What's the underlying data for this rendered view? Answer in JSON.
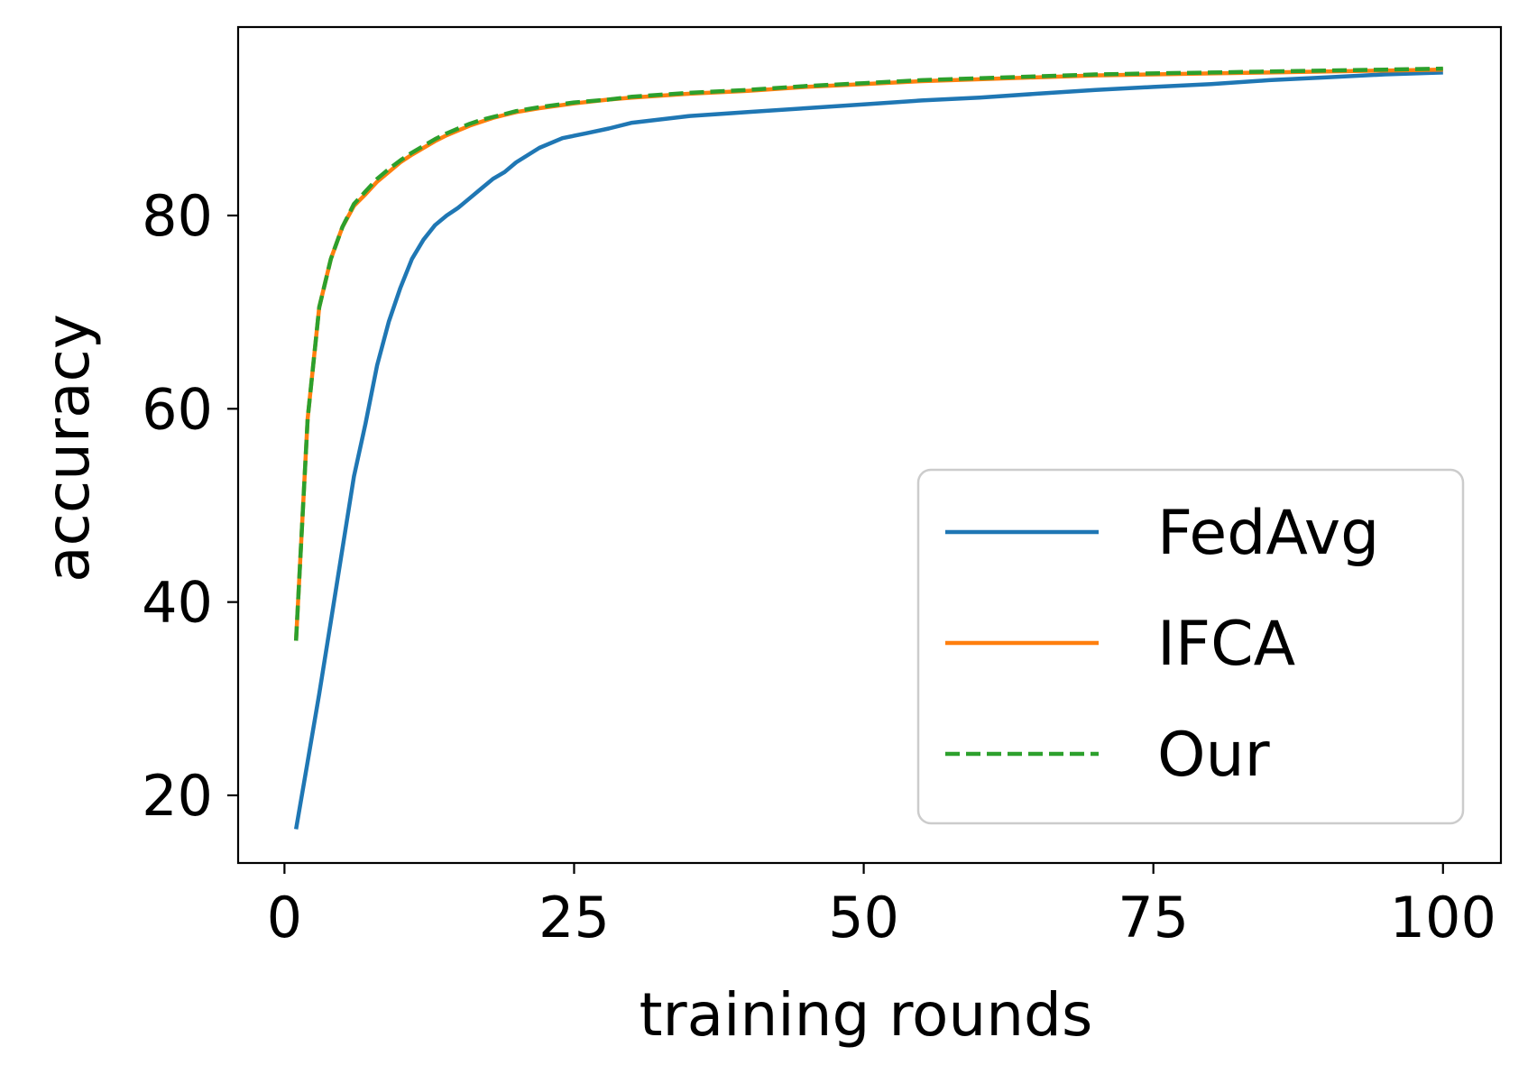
{
  "chart_data": {
    "type": "line",
    "title": "",
    "xlabel": "training rounds",
    "ylabel": "accuracy",
    "xlim": [
      -4,
      105
    ],
    "ylim": [
      13,
      99.5
    ],
    "xticks": [
      0,
      25,
      50,
      75,
      100
    ],
    "yticks": [
      20,
      40,
      60,
      80
    ],
    "grid": false,
    "legend_position": "lower-right",
    "series": [
      {
        "name": "FedAvg",
        "color": "#1f77b4",
        "dash": "solid",
        "x": [
          1,
          2,
          3,
          4,
          5,
          6,
          7,
          8,
          9,
          10,
          11,
          12,
          13,
          14,
          15,
          16,
          17,
          18,
          19,
          20,
          22,
          24,
          26,
          28,
          30,
          35,
          40,
          45,
          50,
          55,
          60,
          65,
          70,
          75,
          80,
          85,
          90,
          95,
          100
        ],
        "y": [
          16.5,
          23.5,
          30.5,
          38.0,
          45.5,
          53.0,
          58.5,
          64.5,
          69.0,
          72.5,
          75.5,
          77.5,
          79.0,
          80.0,
          80.8,
          81.8,
          82.8,
          83.8,
          84.5,
          85.5,
          87.0,
          88.0,
          88.5,
          89.0,
          89.6,
          90.3,
          90.7,
          91.1,
          91.5,
          91.9,
          92.2,
          92.6,
          93.0,
          93.3,
          93.6,
          94.0,
          94.3,
          94.6,
          94.8
        ]
      },
      {
        "name": "IFCA",
        "color": "#ff7f0e",
        "dash": "solid",
        "x": [
          1,
          2,
          3,
          4,
          5,
          6,
          7,
          8,
          9,
          10,
          11,
          12,
          13,
          14,
          15,
          16,
          17,
          18,
          19,
          20,
          22,
          25,
          28,
          30,
          35,
          40,
          45,
          50,
          55,
          60,
          65,
          70,
          75,
          80,
          85,
          90,
          95,
          100
        ],
        "y": [
          36.0,
          59.0,
          70.5,
          75.5,
          78.8,
          81.0,
          82.2,
          83.5,
          84.5,
          85.5,
          86.3,
          87.0,
          87.7,
          88.3,
          88.8,
          89.3,
          89.7,
          90.1,
          90.4,
          90.7,
          91.1,
          91.6,
          92.0,
          92.2,
          92.6,
          92.9,
          93.3,
          93.6,
          93.9,
          94.1,
          94.3,
          94.5,
          94.6,
          94.7,
          94.8,
          94.9,
          95.0,
          95.1
        ]
      },
      {
        "name": "Our",
        "color": "#2ca02c",
        "dash": "dashed",
        "x": [
          1,
          2,
          3,
          4,
          5,
          6,
          7,
          8,
          9,
          10,
          11,
          12,
          13,
          14,
          15,
          16,
          17,
          18,
          19,
          20,
          22,
          25,
          28,
          30,
          35,
          40,
          45,
          50,
          55,
          60,
          65,
          70,
          75,
          80,
          85,
          90,
          95,
          100
        ],
        "y": [
          36.0,
          59.0,
          70.5,
          75.5,
          78.8,
          81.2,
          82.5,
          83.8,
          84.8,
          85.7,
          86.5,
          87.2,
          87.9,
          88.5,
          89.0,
          89.5,
          89.9,
          90.2,
          90.5,
          90.8,
          91.2,
          91.7,
          92.0,
          92.3,
          92.7,
          93.0,
          93.4,
          93.7,
          94.0,
          94.2,
          94.4,
          94.6,
          94.7,
          94.8,
          94.9,
          95.0,
          95.1,
          95.2
        ]
      }
    ]
  }
}
